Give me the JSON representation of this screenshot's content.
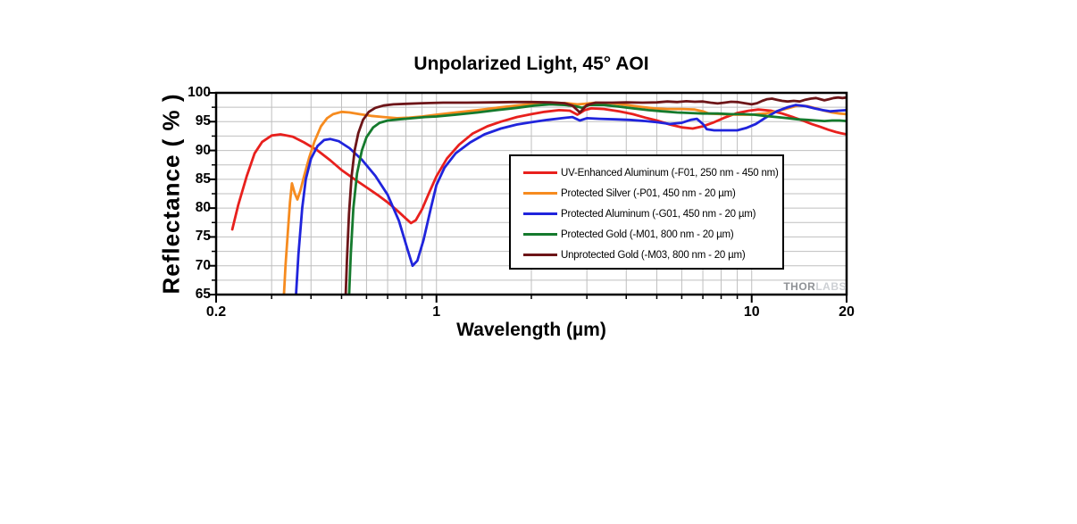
{
  "chart": {
    "watermark_thor": "THOR",
    "watermark_labs": "LABS"
  },
  "chart_data": {
    "type": "line",
    "title": "Unpolarized Light, 45° AOI",
    "xlabel": "Wavelength (µm)",
    "ylabel": "Reflectance ( % )",
    "x_scale": "log",
    "xlim": [
      0.2,
      20
    ],
    "ylim": [
      65,
      100
    ],
    "grid": true,
    "legend_position": "inside-right",
    "x_ticks_labeled": [
      {
        "value": 0.2,
        "label": "0.2"
      },
      {
        "value": 1,
        "label": "1"
      },
      {
        "value": 10,
        "label": "10"
      },
      {
        "value": 20,
        "label": "20"
      }
    ],
    "x_minor_ticks": [
      0.3,
      0.4,
      0.5,
      0.6,
      0.7,
      0.8,
      0.9,
      1,
      2,
      3,
      4,
      5,
      6,
      7,
      8,
      9,
      10
    ],
    "y_major_ticks": [
      65,
      70,
      75,
      80,
      85,
      90,
      95,
      100
    ],
    "y_minor_step": 2.5,
    "gridline_color": "#bfbfbf",
    "series": [
      {
        "name": "UV-Enhanced Aluminum (-F01, 250 nm - 450 nm)",
        "color": "#e8201d",
        "points": [
          [
            0.225,
            76.3
          ],
          [
            0.235,
            80.5
          ],
          [
            0.25,
            85.5
          ],
          [
            0.265,
            89.5
          ],
          [
            0.28,
            91.5
          ],
          [
            0.3,
            92.6
          ],
          [
            0.32,
            92.8
          ],
          [
            0.35,
            92.4
          ],
          [
            0.38,
            91.4
          ],
          [
            0.42,
            90.0
          ],
          [
            0.46,
            88.3
          ],
          [
            0.5,
            86.6
          ],
          [
            0.55,
            85.0
          ],
          [
            0.6,
            83.6
          ],
          [
            0.65,
            82.3
          ],
          [
            0.7,
            81.0
          ],
          [
            0.75,
            79.6
          ],
          [
            0.8,
            78.2
          ],
          [
            0.83,
            77.4
          ],
          [
            0.86,
            77.9
          ],
          [
            0.9,
            79.8
          ],
          [
            0.95,
            82.8
          ],
          [
            1.0,
            85.5
          ],
          [
            1.08,
            88.6
          ],
          [
            1.18,
            91.0
          ],
          [
            1.3,
            92.9
          ],
          [
            1.45,
            94.2
          ],
          [
            1.6,
            95.0
          ],
          [
            1.8,
            95.8
          ],
          [
            2.0,
            96.3
          ],
          [
            2.2,
            96.7
          ],
          [
            2.45,
            97.0
          ],
          [
            2.65,
            96.9
          ],
          [
            2.8,
            96.2
          ],
          [
            2.95,
            97.0
          ],
          [
            3.1,
            97.3
          ],
          [
            3.4,
            97.2
          ],
          [
            3.8,
            96.8
          ],
          [
            4.2,
            96.3
          ],
          [
            4.6,
            95.7
          ],
          [
            5.0,
            95.2
          ],
          [
            5.5,
            94.5
          ],
          [
            6.0,
            94.0
          ],
          [
            6.5,
            93.8
          ],
          [
            7.0,
            94.2
          ],
          [
            7.6,
            94.9
          ],
          [
            8.2,
            95.7
          ],
          [
            9.0,
            96.5
          ],
          [
            9.8,
            96.9
          ],
          [
            10.5,
            97.1
          ],
          [
            11.5,
            96.9
          ],
          [
            12.5,
            96.4
          ],
          [
            13.5,
            95.8
          ],
          [
            14.5,
            95.2
          ],
          [
            15.5,
            94.6
          ],
          [
            16.5,
            94.1
          ],
          [
            17.5,
            93.6
          ],
          [
            18.5,
            93.2
          ],
          [
            19.2,
            93.0
          ],
          [
            20,
            92.8
          ]
        ]
      },
      {
        "name": "Protected Silver (-P01, 450 nm - 20 µm)",
        "color": "#f68b1f",
        "points": [
          [
            0.328,
            64.5
          ],
          [
            0.332,
            70
          ],
          [
            0.338,
            76
          ],
          [
            0.343,
            81
          ],
          [
            0.348,
            84.3
          ],
          [
            0.355,
            82.6
          ],
          [
            0.362,
            81.5
          ],
          [
            0.37,
            83
          ],
          [
            0.38,
            85.5
          ],
          [
            0.395,
            88.8
          ],
          [
            0.41,
            91.5
          ],
          [
            0.43,
            94.2
          ],
          [
            0.45,
            95.6
          ],
          [
            0.47,
            96.3
          ],
          [
            0.5,
            96.7
          ],
          [
            0.53,
            96.6
          ],
          [
            0.57,
            96.3
          ],
          [
            0.62,
            96.0
          ],
          [
            0.68,
            95.8
          ],
          [
            0.75,
            95.6
          ],
          [
            0.82,
            95.7
          ],
          [
            0.9,
            95.9
          ],
          [
            1.0,
            96.2
          ],
          [
            1.15,
            96.6
          ],
          [
            1.35,
            97.0
          ],
          [
            1.55,
            97.4
          ],
          [
            1.8,
            97.8
          ],
          [
            2.05,
            98.1
          ],
          [
            2.35,
            98.3
          ],
          [
            2.6,
            98.2
          ],
          [
            2.8,
            98.0
          ],
          [
            2.95,
            98.1
          ],
          [
            3.2,
            98.3
          ],
          [
            3.6,
            98.2
          ],
          [
            4.0,
            97.9
          ],
          [
            4.4,
            97.6
          ],
          [
            4.9,
            97.3
          ],
          [
            5.4,
            97.2
          ],
          [
            6.0,
            97.2
          ],
          [
            6.6,
            97.1
          ],
          [
            7.0,
            96.8
          ],
          [
            7.3,
            96.4
          ],
          [
            8.0,
            96.3
          ],
          [
            9.0,
            96.2
          ],
          [
            10.0,
            96.2
          ],
          [
            11.0,
            96.4
          ],
          [
            12.0,
            96.8
          ],
          [
            13.0,
            97.3
          ],
          [
            14.0,
            97.8
          ],
          [
            15.0,
            97.7
          ],
          [
            16.0,
            97.3
          ],
          [
            17.0,
            96.9
          ],
          [
            18.0,
            96.6
          ],
          [
            19.0,
            96.4
          ],
          [
            20,
            96.3
          ]
        ]
      },
      {
        "name": "Protected Aluminum (-G01, 450 nm - 20 µm)",
        "color": "#2024dc",
        "points": [
          [
            0.358,
            64.5
          ],
          [
            0.365,
            72
          ],
          [
            0.375,
            80
          ],
          [
            0.385,
            85
          ],
          [
            0.4,
            88.6
          ],
          [
            0.42,
            90.8
          ],
          [
            0.44,
            91.8
          ],
          [
            0.46,
            92.0
          ],
          [
            0.49,
            91.6
          ],
          [
            0.53,
            90.4
          ],
          [
            0.58,
            88.4
          ],
          [
            0.64,
            85.6
          ],
          [
            0.7,
            82.3
          ],
          [
            0.76,
            77.8
          ],
          [
            0.81,
            72.8
          ],
          [
            0.84,
            70.0
          ],
          [
            0.87,
            70.9
          ],
          [
            0.91,
            74.5
          ],
          [
            0.96,
            80.0
          ],
          [
            1.0,
            84.0
          ],
          [
            1.06,
            87.0
          ],
          [
            1.15,
            89.5
          ],
          [
            1.28,
            91.4
          ],
          [
            1.42,
            92.8
          ],
          [
            1.6,
            93.8
          ],
          [
            1.8,
            94.5
          ],
          [
            2.0,
            94.9
          ],
          [
            2.25,
            95.3
          ],
          [
            2.5,
            95.6
          ],
          [
            2.7,
            95.8
          ],
          [
            2.85,
            95.2
          ],
          [
            3.0,
            95.6
          ],
          [
            3.3,
            95.5
          ],
          [
            3.7,
            95.4
          ],
          [
            4.1,
            95.3
          ],
          [
            4.6,
            95.1
          ],
          [
            5.0,
            94.9
          ],
          [
            5.5,
            94.6
          ],
          [
            6.0,
            94.8
          ],
          [
            6.4,
            95.3
          ],
          [
            6.7,
            95.5
          ],
          [
            7.0,
            94.6
          ],
          [
            7.2,
            93.7
          ],
          [
            7.6,
            93.5
          ],
          [
            8.2,
            93.5
          ],
          [
            9.0,
            93.5
          ],
          [
            9.6,
            93.9
          ],
          [
            10.3,
            94.6
          ],
          [
            11.0,
            95.6
          ],
          [
            12.0,
            96.8
          ],
          [
            13.0,
            97.5
          ],
          [
            13.8,
            97.9
          ],
          [
            14.8,
            97.7
          ],
          [
            15.8,
            97.3
          ],
          [
            16.8,
            97.0
          ],
          [
            17.8,
            96.8
          ],
          [
            18.8,
            96.9
          ],
          [
            20,
            97.0
          ]
        ]
      },
      {
        "name": "Protected Gold (-M01, 800 nm - 20 µm)",
        "color": "#157a2d",
        "points": [
          [
            0.528,
            64.5
          ],
          [
            0.535,
            72
          ],
          [
            0.545,
            80
          ],
          [
            0.56,
            86
          ],
          [
            0.58,
            90
          ],
          [
            0.6,
            92.3
          ],
          [
            0.63,
            94.0
          ],
          [
            0.66,
            94.8
          ],
          [
            0.7,
            95.2
          ],
          [
            0.76,
            95.4
          ],
          [
            0.84,
            95.6
          ],
          [
            0.92,
            95.8
          ],
          [
            1.0,
            95.9
          ],
          [
            1.15,
            96.2
          ],
          [
            1.35,
            96.6
          ],
          [
            1.55,
            97.0
          ],
          [
            1.8,
            97.4
          ],
          [
            2.05,
            97.8
          ],
          [
            2.3,
            98.0
          ],
          [
            2.55,
            97.9
          ],
          [
            2.75,
            97.7
          ],
          [
            2.9,
            97.4
          ],
          [
            3.05,
            97.9
          ],
          [
            3.4,
            97.9
          ],
          [
            3.8,
            97.6
          ],
          [
            4.2,
            97.3
          ],
          [
            4.7,
            97.0
          ],
          [
            5.2,
            96.8
          ],
          [
            5.8,
            96.6
          ],
          [
            6.4,
            96.5
          ],
          [
            7.0,
            96.4
          ],
          [
            7.8,
            96.4
          ],
          [
            8.6,
            96.3
          ],
          [
            9.4,
            96.3
          ],
          [
            10.2,
            96.2
          ],
          [
            11.0,
            96.0
          ],
          [
            12.0,
            95.8
          ],
          [
            13.0,
            95.6
          ],
          [
            14.0,
            95.4
          ],
          [
            15.0,
            95.3
          ],
          [
            16.0,
            95.2
          ],
          [
            17.0,
            95.1
          ],
          [
            18.0,
            95.2
          ],
          [
            19.0,
            95.2
          ],
          [
            20,
            95.1
          ]
        ]
      },
      {
        "name": "Unprotected Gold (-M03, 800 nm - 20 µm)",
        "color": "#6d1518",
        "points": [
          [
            0.515,
            64.5
          ],
          [
            0.52,
            71
          ],
          [
            0.528,
            79
          ],
          [
            0.538,
            85.5
          ],
          [
            0.55,
            90
          ],
          [
            0.565,
            93
          ],
          [
            0.585,
            95.3
          ],
          [
            0.61,
            96.7
          ],
          [
            0.64,
            97.4
          ],
          [
            0.68,
            97.8
          ],
          [
            0.73,
            98.0
          ],
          [
            0.8,
            98.1
          ],
          [
            0.9,
            98.2
          ],
          [
            1.05,
            98.3
          ],
          [
            1.25,
            98.3
          ],
          [
            1.5,
            98.35
          ],
          [
            1.75,
            98.4
          ],
          [
            2.0,
            98.4
          ],
          [
            2.3,
            98.35
          ],
          [
            2.55,
            98.2
          ],
          [
            2.7,
            97.8
          ],
          [
            2.85,
            96.6
          ],
          [
            3.0,
            97.9
          ],
          [
            3.2,
            98.3
          ],
          [
            3.6,
            98.3
          ],
          [
            4.0,
            98.35
          ],
          [
            4.5,
            98.3
          ],
          [
            5.0,
            98.35
          ],
          [
            5.4,
            98.5
          ],
          [
            5.8,
            98.4
          ],
          [
            6.2,
            98.55
          ],
          [
            6.6,
            98.45
          ],
          [
            7.0,
            98.5
          ],
          [
            7.4,
            98.3
          ],
          [
            7.8,
            98.15
          ],
          [
            8.2,
            98.3
          ],
          [
            8.6,
            98.45
          ],
          [
            9.0,
            98.4
          ],
          [
            9.5,
            98.2
          ],
          [
            10.0,
            98.0
          ],
          [
            10.4,
            98.2
          ],
          [
            10.8,
            98.6
          ],
          [
            11.2,
            98.9
          ],
          [
            11.6,
            99.0
          ],
          [
            12.0,
            98.8
          ],
          [
            12.5,
            98.6
          ],
          [
            13.0,
            98.5
          ],
          [
            13.6,
            98.6
          ],
          [
            14.2,
            98.5
          ],
          [
            14.8,
            98.8
          ],
          [
            15.4,
            99.0
          ],
          [
            16.0,
            99.1
          ],
          [
            16.5,
            98.9
          ],
          [
            17.0,
            98.7
          ],
          [
            17.6,
            98.9
          ],
          [
            18.2,
            99.1
          ],
          [
            18.8,
            99.2
          ],
          [
            19.4,
            99.1
          ],
          [
            20,
            99.2
          ]
        ]
      }
    ]
  }
}
